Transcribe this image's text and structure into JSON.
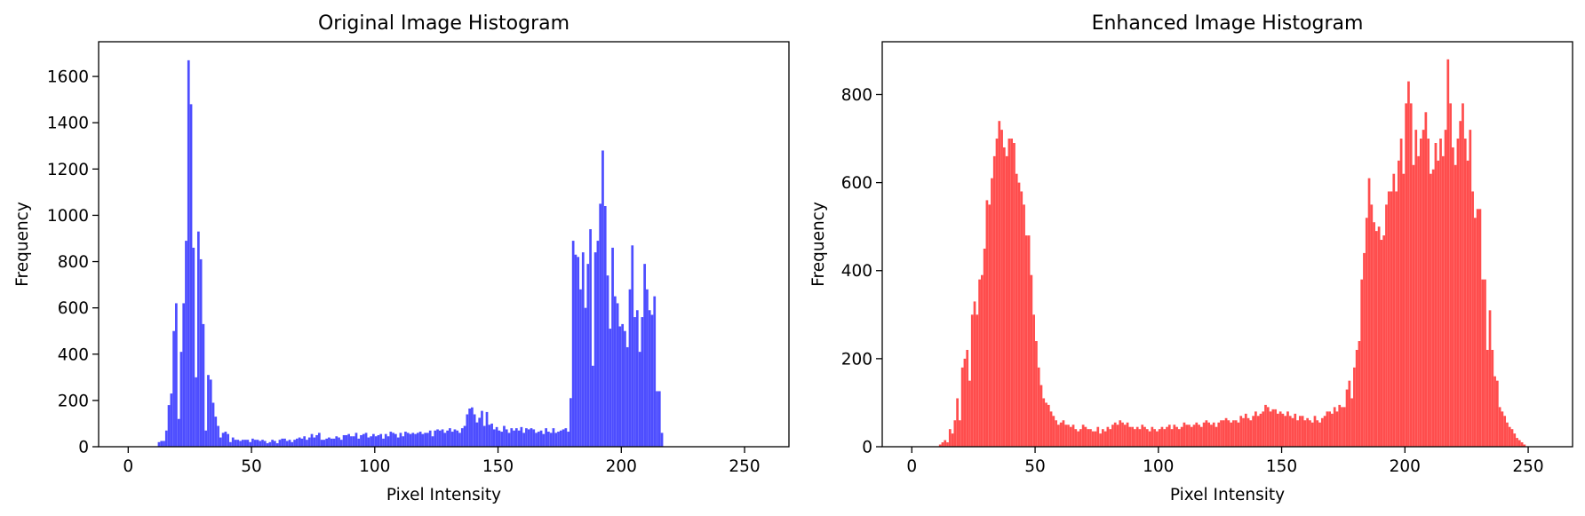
{
  "chart_data": [
    {
      "type": "bar",
      "title": "Original Image Histogram",
      "xlabel": "Pixel Intensity",
      "ylabel": "Frequency",
      "xlim": [
        -12,
        268
      ],
      "ylim": [
        0,
        1750
      ],
      "xticks": [
        "0",
        "50",
        "100",
        "150",
        "200",
        "250"
      ],
      "yticks": [
        "0",
        "200",
        "400",
        "600",
        "800",
        "1000",
        "1200",
        "1400",
        "1600"
      ],
      "color": "#4d4dff",
      "bin_start": 0,
      "bin_width": 1,
      "values": [
        0,
        0,
        0,
        0,
        0,
        0,
        0,
        0,
        0,
        0,
        0,
        0,
        20,
        25,
        25,
        70,
        180,
        230,
        500,
        620,
        120,
        410,
        620,
        890,
        1670,
        1480,
        860,
        300,
        930,
        810,
        530,
        70,
        310,
        290,
        190,
        130,
        90,
        40,
        60,
        65,
        55,
        20,
        40,
        30,
        30,
        25,
        30,
        30,
        30,
        20,
        35,
        30,
        30,
        25,
        30,
        25,
        15,
        20,
        30,
        25,
        15,
        30,
        35,
        35,
        25,
        30,
        20,
        30,
        35,
        40,
        35,
        45,
        30,
        40,
        55,
        40,
        50,
        60,
        30,
        30,
        35,
        40,
        35,
        35,
        45,
        40,
        30,
        50,
        50,
        55,
        45,
        45,
        60,
        35,
        50,
        55,
        60,
        40,
        45,
        55,
        45,
        50,
        55,
        35,
        55,
        45,
        65,
        60,
        55,
        40,
        60,
        45,
        65,
        60,
        55,
        60,
        55,
        60,
        65,
        55,
        60,
        60,
        70,
        45,
        70,
        75,
        70,
        75,
        60,
        70,
        80,
        65,
        75,
        70,
        60,
        80,
        90,
        140,
        165,
        170,
        140,
        105,
        125,
        155,
        90,
        150,
        95,
        100,
        75,
        85,
        70,
        65,
        90,
        75,
        60,
        80,
        70,
        80,
        70,
        85,
        60,
        80,
        75,
        80,
        75,
        60,
        65,
        70,
        55,
        80,
        65,
        60,
        80,
        60,
        65,
        70,
        75,
        80,
        65,
        210,
        890,
        830,
        820,
        680,
        840,
        600,
        790,
        940,
        350,
        840,
        890,
        1050,
        1280,
        1040,
        740,
        510,
        860,
        650,
        620,
        520,
        530,
        500,
        430,
        680,
        870,
        560,
        590,
        410,
        560,
        790,
        680,
        590,
        570,
        650,
        240,
        240,
        60,
        0,
        0,
        0,
        0,
        0,
        0,
        0,
        0,
        0,
        0,
        0,
        0,
        0,
        0,
        0,
        0,
        0,
        0,
        0
      ]
    },
    {
      "type": "bar",
      "title": "Enhanced Image Histogram",
      "xlabel": "Pixel Intensity",
      "ylabel": "Frequency",
      "xlim": [
        -12,
        268
      ],
      "ylim": [
        0,
        920
      ],
      "xticks": [
        "0",
        "50",
        "100",
        "150",
        "200",
        "250"
      ],
      "yticks": [
        "0",
        "200",
        "400",
        "600",
        "800"
      ],
      "color": "#ff4d4d",
      "bin_start": 0,
      "bin_width": 1,
      "values": [
        0,
        0,
        0,
        0,
        0,
        0,
        0,
        0,
        0,
        0,
        0,
        5,
        10,
        15,
        10,
        40,
        30,
        60,
        110,
        60,
        180,
        200,
        220,
        150,
        300,
        330,
        300,
        380,
        390,
        450,
        560,
        550,
        610,
        660,
        700,
        740,
        720,
        680,
        660,
        700,
        700,
        690,
        620,
        600,
        580,
        550,
        480,
        480,
        390,
        300,
        240,
        180,
        140,
        110,
        100,
        95,
        80,
        70,
        60,
        50,
        55,
        60,
        50,
        50,
        45,
        50,
        40,
        35,
        40,
        50,
        45,
        40,
        40,
        35,
        35,
        45,
        30,
        40,
        35,
        45,
        40,
        50,
        55,
        50,
        60,
        55,
        50,
        55,
        45,
        45,
        40,
        45,
        40,
        50,
        45,
        40,
        35,
        45,
        40,
        35,
        40,
        45,
        40,
        45,
        50,
        40,
        50,
        45,
        40,
        45,
        55,
        50,
        50,
        45,
        50,
        55,
        50,
        45,
        55,
        60,
        55,
        50,
        55,
        45,
        55,
        60,
        60,
        65,
        60,
        55,
        60,
        60,
        55,
        70,
        65,
        75,
        65,
        60,
        70,
        80,
        70,
        75,
        80,
        95,
        90,
        80,
        85,
        85,
        75,
        80,
        75,
        70,
        80,
        70,
        65,
        75,
        60,
        70,
        70,
        60,
        65,
        60,
        55,
        70,
        60,
        55,
        65,
        70,
        80,
        80,
        75,
        90,
        80,
        95,
        90,
        90,
        130,
        150,
        110,
        180,
        220,
        240,
        380,
        440,
        520,
        610,
        550,
        510,
        490,
        500,
        470,
        480,
        550,
        580,
        580,
        620,
        580,
        650,
        700,
        620,
        780,
        830,
        780,
        640,
        720,
        660,
        700,
        720,
        760,
        700,
        620,
        630,
        690,
        650,
        700,
        660,
        720,
        880,
        780,
        680,
        640,
        700,
        740,
        780,
        700,
        650,
        720,
        580,
        520,
        540,
        540,
        380,
        380,
        220,
        310,
        220,
        160,
        150,
        90,
        80,
        70,
        55,
        45,
        40,
        30,
        20,
        15,
        10,
        5,
        0,
        0,
        0,
        0,
        0,
        0,
        0,
        0,
        0,
        0,
        0,
        0,
        0,
        0,
        0,
        0,
        0,
        0
      ]
    }
  ]
}
